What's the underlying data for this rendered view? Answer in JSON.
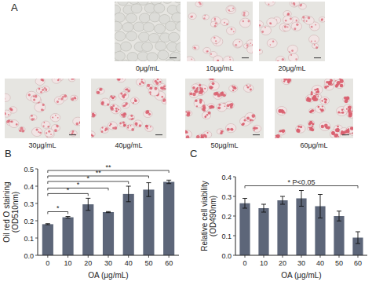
{
  "panel_a": {
    "label": "A",
    "images": [
      "0μg/mL",
      "10μg/mL",
      "20μg/mL",
      "30μg/mL",
      "40μg/mL",
      "50μg/mL",
      "60μg/mL"
    ]
  },
  "chart_data": [
    {
      "type": "bar",
      "title": "B",
      "categories": [
        "0",
        "10",
        "20",
        "30",
        "40",
        "50",
        "60"
      ],
      "values": [
        0.18,
        0.22,
        0.295,
        0.25,
        0.355,
        0.38,
        0.425
      ],
      "errors": [
        0.003,
        0.005,
        0.035,
        0.003,
        0.045,
        0.04,
        0.01
      ],
      "color": "#5d6679",
      "xlabel": "OA (μg/mL)",
      "ylabel": [
        "Oil red O staining",
        "(OD510nm)"
      ],
      "ylim": [
        0,
        0.5
      ],
      "yticks": [
        {
          "value": 0,
          "label": "0.0"
        },
        0.1,
        0.2,
        0.3,
        0.4,
        0.5
      ],
      "annotations": [
        {
          "from": 0,
          "to": 1,
          "text": "*"
        },
        {
          "from": 0,
          "to": 2,
          "text": "*"
        },
        {
          "from": 0,
          "to": 3,
          "text": "*"
        },
        {
          "from": 0,
          "to": 4,
          "text": "*"
        },
        {
          "from": 0,
          "to": 5,
          "text": "**"
        },
        {
          "from": 0,
          "to": 6,
          "text": "**"
        }
      ]
    },
    {
      "type": "bar",
      "title": "C",
      "categories": [
        "0",
        "10",
        "20",
        "30",
        "40",
        "50",
        "60"
      ],
      "values": [
        0.265,
        0.24,
        0.28,
        0.29,
        0.25,
        0.2,
        0.09
      ],
      "errors": [
        0.025,
        0.02,
        0.02,
        0.04,
        0.06,
        0.025,
        0.03
      ],
      "color": "#5d6679",
      "xlabel": "OA (μg/mL)",
      "ylabel": [
        "Relative cell viability",
        "(OD490nm)"
      ],
      "ylim": [
        0,
        0.4
      ],
      "yticks": [
        {
          "value": 0,
          "label": "0.0"
        },
        0.1,
        0.2,
        0.3,
        0.4
      ],
      "annotations": [
        {
          "from": 0,
          "to": 6,
          "text": "* P<0.05"
        }
      ]
    }
  ]
}
